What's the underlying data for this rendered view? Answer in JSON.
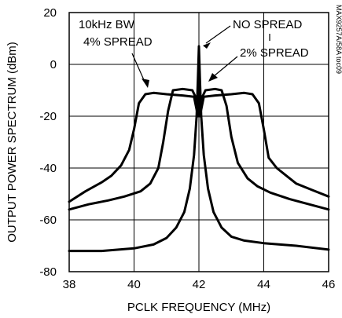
{
  "chart_data": {
    "type": "line",
    "xlabel": "PCLK FREQUENCY (MHz)",
    "ylabel": "OUTPUT POWER SPECTRUM (dBm)",
    "xlim": [
      38,
      46
    ],
    "ylim": [
      -80,
      20
    ],
    "x_ticks": [
      38,
      40,
      42,
      44,
      46
    ],
    "y_ticks": [
      20,
      0,
      -20,
      -40,
      -60,
      -80
    ],
    "grid": true,
    "annotations": [
      "10kHz BW",
      "4% SPREAD",
      "NO SPREAD",
      "2% SPREAD"
    ],
    "part_number": "MAX9257A/58A toc09",
    "series": [
      {
        "name": "4% SPREAD",
        "x": [
          38.0,
          38.5,
          39.0,
          39.3,
          39.6,
          39.85,
          40.0,
          40.15,
          40.35,
          40.6,
          41.0,
          41.5,
          41.85,
          41.97,
          42.0,
          42.03,
          42.15,
          42.5,
          43.0,
          43.4,
          43.65,
          43.85,
          44.0,
          44.15,
          44.4,
          44.7,
          45.0,
          45.5,
          46.0
        ],
        "y": [
          -53,
          -49,
          -45.5,
          -43,
          -39,
          -33,
          -25,
          -15,
          -11.5,
          -11,
          -11.5,
          -12,
          -12.5,
          -20,
          -8,
          -20,
          -12.5,
          -12,
          -11.5,
          -11,
          -11.5,
          -15,
          -25,
          -36,
          -40,
          -43,
          -46,
          -48.5,
          -51
        ]
      },
      {
        "name": "2% SPREAD",
        "x": [
          38.0,
          38.6,
          39.2,
          39.7,
          40.2,
          40.5,
          40.75,
          40.9,
          41.05,
          41.2,
          41.5,
          41.8,
          41.95,
          42.0,
          42.05,
          42.2,
          42.5,
          42.7,
          42.85,
          43.0,
          43.2,
          43.5,
          43.8,
          44.2,
          44.8,
          45.4,
          46.0
        ],
        "y": [
          -56,
          -54,
          -52.5,
          -51,
          -49,
          -46,
          -40,
          -30,
          -18,
          -10,
          -9.5,
          -10,
          -14,
          -10,
          -14,
          -10,
          -9.5,
          -10,
          -16,
          -28,
          -38,
          -44,
          -47,
          -49.5,
          -52,
          -54,
          -56
        ]
      },
      {
        "name": "NO SPREAD",
        "x": [
          38.0,
          39.0,
          40.0,
          40.6,
          41.0,
          41.3,
          41.55,
          41.72,
          41.85,
          41.93,
          41.97,
          42.0,
          42.03,
          42.07,
          42.15,
          42.28,
          42.45,
          42.7,
          43.0,
          43.4,
          44.0,
          45.0,
          46.0
        ],
        "y": [
          -72,
          -72,
          -71,
          -69.5,
          -67,
          -63,
          -57,
          -48,
          -35,
          -20,
          -5,
          7,
          -5,
          -20,
          -35,
          -48,
          -57,
          -63,
          -66.5,
          -68,
          -69,
          -70,
          -71.5
        ]
      }
    ]
  }
}
